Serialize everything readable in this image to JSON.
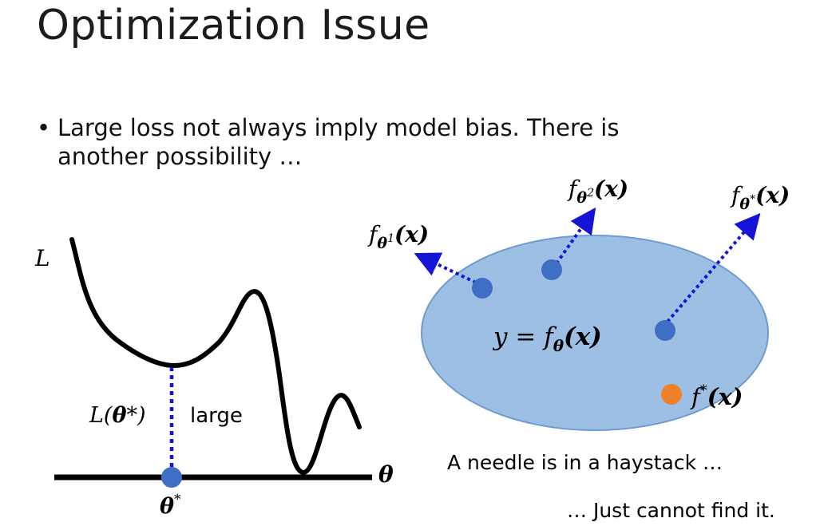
{
  "slide": {
    "title": "Optimization Issue",
    "bullet_marker": "•",
    "bullet_line1": "Large loss not always imply model bias. There is",
    "bullet_line2": "another possibility …"
  },
  "loss_plot": {
    "y_axis_label": "L",
    "x_axis_label": "θ",
    "loss_at_min_label_prefix": "L(",
    "loss_at_min_label_theta": "θ",
    "loss_at_min_label_suffix": "*)",
    "large_label": "large",
    "theta_star_label": "θ",
    "theta_star_sup": "*"
  },
  "function_space": {
    "f_label": "f",
    "theta_sub": "θ",
    "sup1": "1",
    "sup2": "2",
    "supstar": "*",
    "arg": "(x)",
    "center_prefix": "y = ",
    "f_star_label": "f",
    "f_star_sup": "*",
    "caption_line1": "A needle is in a haystack …",
    "caption_line2": "… Just cannot find it."
  },
  "colors": {
    "ellipse_fill": "#9dbfe3",
    "ellipse_stroke": "#6f9bd0",
    "point_blue": "#3f6fc4",
    "point_orange": "#f0802a",
    "dotted_line": "#1414d6"
  }
}
